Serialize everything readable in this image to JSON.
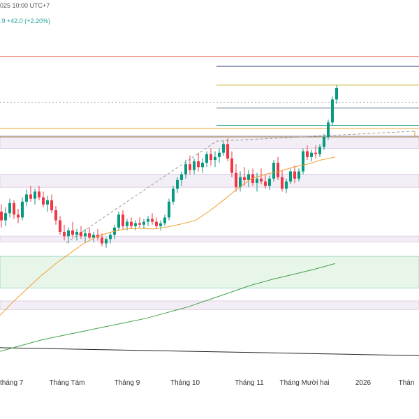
{
  "header": {
    "time_fragment": "025 10:00 UTC+7",
    "change_fragment": ".9  +42.0 (+2.20%)"
  },
  "colors": {
    "up": "#089981",
    "down": "#f23645",
    "ma_short": "#f0a030",
    "ma_long": "#43a047",
    "trend": "#222222",
    "zone_pink": "#f3eef6",
    "zone_green": "#e8f5e9"
  },
  "chart_data": {
    "type": "candlestick",
    "x_tick_labels": [
      "tháng 7",
      "Tháng Tám",
      "Tháng 9",
      "Tháng 10",
      "Tháng 11",
      "Tháng Mười hai",
      "2026",
      "Thán"
    ],
    "price_range": [
      1500,
      1960
    ],
    "series": [
      {
        "name": "",
        "kind": "ohlc",
        "values": [
          [
            1724,
            1734,
            1702,
            1712
          ],
          [
            1712,
            1730,
            1704,
            1722
          ],
          [
            1722,
            1742,
            1716,
            1736
          ],
          [
            1736,
            1740,
            1714,
            1720
          ],
          [
            1720,
            1728,
            1708,
            1716
          ],
          [
            1716,
            1744,
            1712,
            1738
          ],
          [
            1738,
            1755,
            1732,
            1748
          ],
          [
            1748,
            1760,
            1738,
            1742
          ],
          [
            1742,
            1756,
            1734,
            1752
          ],
          [
            1752,
            1760,
            1740,
            1744
          ],
          [
            1744,
            1752,
            1730,
            1734
          ],
          [
            1734,
            1746,
            1724,
            1740
          ],
          [
            1740,
            1748,
            1722,
            1726
          ],
          [
            1726,
            1732,
            1706,
            1712
          ],
          [
            1712,
            1718,
            1692,
            1696
          ],
          [
            1696,
            1706,
            1684,
            1690
          ],
          [
            1690,
            1702,
            1680,
            1698
          ],
          [
            1698,
            1710,
            1688,
            1692
          ],
          [
            1692,
            1700,
            1684,
            1696
          ],
          [
            1696,
            1704,
            1686,
            1690
          ],
          [
            1690,
            1700,
            1682,
            1694
          ],
          [
            1694,
            1702,
            1686,
            1688
          ],
          [
            1688,
            1696,
            1682,
            1692
          ],
          [
            1692,
            1700,
            1684,
            1688
          ],
          [
            1688,
            1694,
            1676,
            1680
          ],
          [
            1680,
            1688,
            1674,
            1686
          ],
          [
            1686,
            1696,
            1680,
            1692
          ],
          [
            1692,
            1706,
            1686,
            1702
          ],
          [
            1702,
            1724,
            1698,
            1720
          ],
          [
            1720,
            1726,
            1700,
            1704
          ],
          [
            1704,
            1714,
            1698,
            1710
          ],
          [
            1710,
            1716,
            1700,
            1704
          ],
          [
            1704,
            1712,
            1698,
            1708
          ],
          [
            1708,
            1716,
            1702,
            1706
          ],
          [
            1706,
            1714,
            1700,
            1710
          ],
          [
            1710,
            1718,
            1704,
            1714
          ],
          [
            1714,
            1722,
            1706,
            1710
          ],
          [
            1710,
            1716,
            1700,
            1704
          ],
          [
            1704,
            1712,
            1698,
            1708
          ],
          [
            1708,
            1720,
            1704,
            1716
          ],
          [
            1716,
            1742,
            1712,
            1738
          ],
          [
            1738,
            1760,
            1734,
            1756
          ],
          [
            1756,
            1772,
            1750,
            1768
          ],
          [
            1768,
            1780,
            1760,
            1776
          ],
          [
            1776,
            1796,
            1770,
            1790
          ],
          [
            1790,
            1802,
            1776,
            1782
          ],
          [
            1782,
            1798,
            1776,
            1794
          ],
          [
            1794,
            1806,
            1780,
            1786
          ],
          [
            1786,
            1798,
            1778,
            1792
          ],
          [
            1792,
            1808,
            1786,
            1804
          ],
          [
            1804,
            1812,
            1788,
            1796
          ],
          [
            1796,
            1808,
            1786,
            1800
          ],
          [
            1800,
            1812,
            1792,
            1806
          ],
          [
            1806,
            1822,
            1802,
            1818
          ],
          [
            1818,
            1826,
            1794,
            1798
          ],
          [
            1798,
            1808,
            1772,
            1778
          ],
          [
            1778,
            1790,
            1752,
            1758
          ],
          [
            1758,
            1780,
            1752,
            1772
          ],
          [
            1772,
            1786,
            1760,
            1768
          ],
          [
            1768,
            1782,
            1758,
            1776
          ],
          [
            1776,
            1784,
            1760,
            1764
          ],
          [
            1764,
            1778,
            1752,
            1770
          ],
          [
            1770,
            1784,
            1762,
            1766
          ],
          [
            1766,
            1776,
            1756,
            1760
          ],
          [
            1760,
            1774,
            1754,
            1770
          ],
          [
            1770,
            1796,
            1766,
            1792
          ],
          [
            1792,
            1800,
            1768,
            1772
          ],
          [
            1772,
            1782,
            1752,
            1756
          ],
          [
            1756,
            1770,
            1750,
            1766
          ],
          [
            1766,
            1784,
            1762,
            1780
          ],
          [
            1780,
            1788,
            1764,
            1770
          ],
          [
            1770,
            1784,
            1766,
            1780
          ],
          [
            1780,
            1812,
            1776,
            1808
          ],
          [
            1808,
            1816,
            1796,
            1800
          ],
          [
            1800,
            1810,
            1794,
            1806
          ],
          [
            1806,
            1816,
            1798,
            1804
          ],
          [
            1804,
            1818,
            1800,
            1814
          ],
          [
            1814,
            1832,
            1810,
            1828
          ],
          [
            1828,
            1852,
            1824,
            1848
          ],
          [
            1848,
            1884,
            1844,
            1880
          ],
          [
            1880,
            1900,
            1874,
            1896
          ]
        ]
      },
      {
        "name": "",
        "kind": "moving-average-short",
        "values": [
          1580,
          1600,
          1618,
          1636,
          1652,
          1666,
          1680,
          1690,
          1696,
          1700,
          1701,
          1700,
          1703,
          1707,
          1712,
          1725,
          1740,
          1756,
          1770,
          1776,
          1780,
          1786,
          1790,
          1796,
          1800
        ]
      },
      {
        "name": "",
        "kind": "moving-average-long",
        "values": [
          1530,
          1538,
          1546,
          1552,
          1558,
          1564,
          1570,
          1576,
          1584,
          1592,
          1602,
          1612,
          1622,
          1630,
          1637,
          1644,
          1652
        ]
      },
      {
        "name": "",
        "kind": "trendline",
        "values": [
          1535,
          1524
        ]
      }
    ],
    "levels": [
      1940,
      1926,
      1900,
      1868,
      1844,
      1828
    ],
    "box_levels": [
      1840,
      1828
    ],
    "zones": [
      [
        1830,
        1812
      ],
      [
        1776,
        1758
      ],
      [
        1690,
        1682
      ],
      [
        1662,
        1618
      ],
      [
        1600,
        1588
      ]
    ],
    "grid": false,
    "legend": "none"
  }
}
